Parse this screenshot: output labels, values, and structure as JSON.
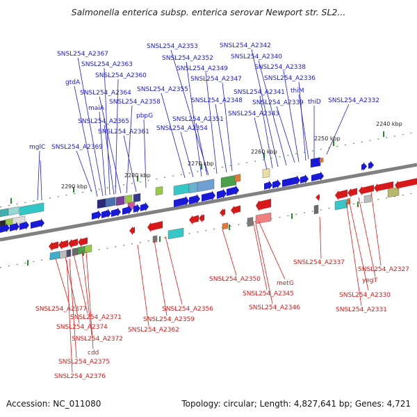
{
  "title": "Salmonella enterica subsp. enterica serovar Newport str. SL2...",
  "accession": "Accession: NC_011080",
  "topology": "Topology: circular; Length: 4,827,641 bp; Genes: 4,721",
  "colors": {
    "forward": "#1a1ad6",
    "reverse": "#d61a1a",
    "backbone": "#808080",
    "tick": "#2a8a2a"
  },
  "kbp_labels": [
    "2240 kbp",
    "2250 kbp",
    "2260 kbp",
    "2270 kbp",
    "2280 kbp",
    "2290 kbp"
  ],
  "forward_genes": [
    "SNSL254_A2367",
    "SNSL254_A2363",
    "SNSL254_A2360",
    "gtdA",
    "SNSL254_A2364",
    "maiA",
    "SNSL254_A2358",
    "pbpG",
    "SNSL254_A2365",
    "SNSL254_A2361",
    "SNSL254_A2369",
    "mglC",
    "SNSL254_A2353",
    "SNSL254_A2352",
    "SNSL254_A2349",
    "SNSL254_A2347",
    "SNSL254_A2355",
    "SNSL254_A2348",
    "SNSL254_A2351",
    "SNSL254_A2354",
    "SNSL254_A2342",
    "SNSL254_A2340",
    "SNSL254_A2338",
    "SNSL254_A2336",
    "SNSL254_A2341",
    "thiM",
    "SNSL254_A2339",
    "thiD",
    "SNSL254_A2343",
    "SNSL254_A2332"
  ],
  "reverse_genes": [
    "SNSL254_A2337",
    "SNSL254_A2327",
    "yegT",
    "SNSL254_A2330",
    "SNSL254_A2331",
    "SNSL254_A2350",
    "metG",
    "SNSL254_A2345",
    "SNSL254_A2346",
    "SNSL254_A2356",
    "SNSL254_A2359",
    "SNSL254_A2362",
    "SNSL254_A2377",
    "SNSL254_A2371",
    "SNSL254_A2374",
    "SNSL254_A2372",
    "cdd",
    "SNSL254_A2375",
    "SNSL254_A2376"
  ]
}
